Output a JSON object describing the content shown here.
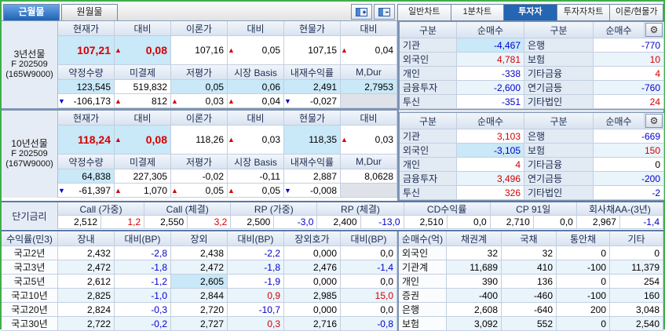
{
  "colors": {
    "accent_blue": "#2465b4",
    "up_red": "#d40000",
    "down_blue": "#0000cc",
    "highlight": "#c9e8f8",
    "frame_green": "#3fae49"
  },
  "top_tabs": {
    "left": [
      {
        "label": "근월물",
        "active": true
      },
      {
        "label": "원월물",
        "active": false
      }
    ],
    "icon_buttons": [
      {
        "name": "grid-plus-icon"
      },
      {
        "name": "grid-minus-icon"
      }
    ],
    "right": [
      {
        "label": "일반차트",
        "active": false
      },
      {
        "label": "1분차트",
        "active": false
      },
      {
        "label": "투자자",
        "active": true
      },
      {
        "label": "투자자차트",
        "active": false
      },
      {
        "label": "이론/현물가",
        "active": false
      }
    ]
  },
  "futures_blocks": [
    {
      "label_lines": [
        "3년선물",
        "F 202509",
        "(165W9000)"
      ],
      "price_headers": [
        "현재가",
        "대비",
        "이론가",
        "대비",
        "현물가",
        "대비"
      ],
      "price_cells": [
        {
          "t": "107,21",
          "c": "red",
          "b": "hl",
          "big": true
        },
        {
          "t": "0,08",
          "c": "red",
          "b": "hl",
          "big": true,
          "a": "up"
        },
        {
          "t": "107,16"
        },
        {
          "t": "0,05",
          "a": "up"
        },
        {
          "t": "107,15"
        },
        {
          "t": "0,04",
          "a": "up"
        }
      ],
      "stat_headers": [
        "약정수량",
        "미결제",
        "저평가",
        "시장 Basis",
        "내재수익률",
        "M,Dur"
      ],
      "stat_cells": [
        {
          "t": "123,545",
          "b": "hl"
        },
        {
          "t": "519,832"
        },
        {
          "t": "0,05",
          "b": "hl"
        },
        {
          "t": "0,06",
          "b": "hl"
        },
        {
          "t": "2,491",
          "b": "hl"
        },
        {
          "t": "2,7953",
          "b": "hl"
        }
      ],
      "chg_cells": [
        {
          "t": "-106,173",
          "a": "down"
        },
        {
          "t": "812",
          "a": "up"
        },
        {
          "t": "0,03",
          "a": "up"
        },
        {
          "t": "0,04",
          "a": "up"
        },
        {
          "t": "-0,027",
          "a": "down"
        },
        {
          "t": "",
          "b": "gray"
        }
      ]
    },
    {
      "label_lines": [
        "10년선물",
        "F 202509",
        "(167W9000)"
      ],
      "price_headers": [
        "현재가",
        "대비",
        "이론가",
        "대비",
        "현물가",
        "대비"
      ],
      "price_cells": [
        {
          "t": "118,24",
          "c": "red",
          "b": "hl",
          "big": true
        },
        {
          "t": "0,08",
          "c": "red",
          "b": "hl",
          "big": true,
          "a": "up"
        },
        {
          "t": "118,26"
        },
        {
          "t": "0,03",
          "a": "up"
        },
        {
          "t": "118,35",
          "b": "hl"
        },
        {
          "t": "0,03",
          "a": "up"
        }
      ],
      "stat_headers": [
        "약정수량",
        "미결제",
        "저평가",
        "시장 Basis",
        "내재수익률",
        "M,Dur"
      ],
      "stat_cells": [
        {
          "t": "64,838",
          "b": "hl"
        },
        {
          "t": "227,305"
        },
        {
          "t": "-0,02"
        },
        {
          "t": "-0,11"
        },
        {
          "t": "2,887"
        },
        {
          "t": "8,0628"
        }
      ],
      "chg_cells": [
        {
          "t": "-61,397",
          "a": "down"
        },
        {
          "t": "1,070",
          "a": "up"
        },
        {
          "t": "0,05",
          "a": "up"
        },
        {
          "t": "0,05",
          "a": "up"
        },
        {
          "t": "-0,008",
          "a": "down"
        },
        {
          "t": "",
          "b": "gray"
        }
      ]
    }
  ],
  "investor_tables": [
    {
      "headers": [
        "구분",
        "순매수",
        "구분",
        "순매수"
      ],
      "gear_icon": "⚙",
      "rows": [
        {
          "g1": "기관",
          "v1": "-4,467",
          "c1": "blue",
          "hl1": true,
          "g2": "은행",
          "v2": "-770",
          "c2": "blue"
        },
        {
          "g1": "외국인",
          "v1": "4,781",
          "c1": "red",
          "g2": "보험",
          "v2": "10",
          "c2": "red"
        },
        {
          "g1": "개인",
          "v1": "-338",
          "c1": "blue",
          "g2": "기타금융",
          "v2": "4",
          "c2": "red"
        },
        {
          "g1": "금융투자",
          "v1": "-2,600",
          "c1": "blue",
          "g2": "연기금등",
          "v2": "-760",
          "c2": "blue"
        },
        {
          "g1": "투신",
          "v1": "-351",
          "c1": "blue",
          "g2": "기타법인",
          "v2": "24",
          "c2": "red"
        }
      ]
    },
    {
      "headers": [
        "구분",
        "순매수",
        "구분",
        "순매수"
      ],
      "gear_icon": "⚙",
      "rows": [
        {
          "g1": "기관",
          "v1": "3,103",
          "c1": "red",
          "g2": "은행",
          "v2": "-669",
          "c2": "blue"
        },
        {
          "g1": "외국인",
          "v1": "-3,105",
          "c1": "blue",
          "hl1": true,
          "g2": "보험",
          "v2": "150",
          "c2": "red"
        },
        {
          "g1": "개인",
          "v1": "4",
          "c1": "red",
          "g2": "기타금융",
          "v2": "0",
          "c2": "black"
        },
        {
          "g1": "금융투자",
          "v1": "3,496",
          "c1": "red",
          "g2": "연기금등",
          "v2": "-200",
          "c2": "blue"
        },
        {
          "g1": "투신",
          "v1": "326",
          "c1": "red",
          "g2": "기타법인",
          "v2": "-2",
          "c2": "blue"
        }
      ]
    }
  ],
  "short_rates": {
    "label": "단기금리",
    "groups": [
      {
        "h": "Call (가중)",
        "v": "2,512",
        "d": "1,2",
        "dc": "red"
      },
      {
        "h": "Call (체결)",
        "v": "2,550",
        "d": "3,2",
        "dc": "red"
      },
      {
        "h": "RP (가중)",
        "v": "2,500",
        "d": "-3,0",
        "dc": "blue"
      },
      {
        "h": "RP (체결)",
        "v": "2,400",
        "d": "-13,0",
        "dc": "blue"
      },
      {
        "h": "CD수익률",
        "v": "2,510",
        "d": "0,0",
        "dc": "black"
      },
      {
        "h": "CP 91일",
        "v": "2,710",
        "d": "0,0",
        "dc": "black"
      },
      {
        "h": "회사채AA-(3년)",
        "v": "2,967",
        "d": "-1,4",
        "dc": "blue"
      }
    ]
  },
  "yield_table": {
    "headers": [
      "수익률(민3)",
      "장내",
      "대비(BP)",
      "장외",
      "대비(BP)",
      "장외호가",
      "대비(BP)"
    ],
    "rows": [
      {
        "label": "국고2년",
        "cells": [
          {
            "t": "2,432"
          },
          {
            "t": "-2,8",
            "c": "blue"
          },
          {
            "t": "2,438"
          },
          {
            "t": "-2,2",
            "c": "blue"
          },
          {
            "t": "0,000"
          },
          {
            "t": "0,0"
          }
        ]
      },
      {
        "label": "국고3년",
        "cells": [
          {
            "t": "2,472"
          },
          {
            "t": "-1,8",
            "c": "blue"
          },
          {
            "t": "2,472"
          },
          {
            "t": "-1,8",
            "c": "blue"
          },
          {
            "t": "2,476"
          },
          {
            "t": "-1,4",
            "c": "blue"
          }
        ]
      },
      {
        "label": "국고5년",
        "cells": [
          {
            "t": "2,612"
          },
          {
            "t": "-1,2",
            "c": "blue"
          },
          {
            "t": "2,605",
            "b": "hl"
          },
          {
            "t": "-1,9",
            "c": "blue"
          },
          {
            "t": "0,000"
          },
          {
            "t": "0,0"
          }
        ]
      },
      {
        "label": "국고10년",
        "cells": [
          {
            "t": "2,825"
          },
          {
            "t": "-1,0",
            "c": "blue"
          },
          {
            "t": "2,844"
          },
          {
            "t": "0,9",
            "c": "red"
          },
          {
            "t": "2,985"
          },
          {
            "t": "15,0",
            "c": "red"
          }
        ]
      },
      {
        "label": "국고20년",
        "cells": [
          {
            "t": "2,824"
          },
          {
            "t": "-0,3",
            "c": "blue"
          },
          {
            "t": "2,720"
          },
          {
            "t": "-10,7",
            "c": "blue"
          },
          {
            "t": "0,000"
          },
          {
            "t": "0,0"
          }
        ]
      },
      {
        "label": "국고30년",
        "cells": [
          {
            "t": "2,722"
          },
          {
            "t": "-0,2",
            "c": "blue"
          },
          {
            "t": "2,727"
          },
          {
            "t": "0,3",
            "c": "red"
          },
          {
            "t": "2,716"
          },
          {
            "t": "-0,8",
            "c": "blue"
          }
        ]
      }
    ]
  },
  "netbuy_table": {
    "headers": [
      "순매수(억)",
      "채권계",
      "국채",
      "통안채",
      "기타"
    ],
    "rows": [
      {
        "label": "외국인",
        "cells": [
          "32",
          "32",
          "0",
          "0"
        ]
      },
      {
        "label": "기관계",
        "cells": [
          "11,689",
          "410",
          "-100",
          "11,379"
        ]
      },
      {
        "label": "개인",
        "cells": [
          "390",
          "136",
          "0",
          "254"
        ]
      },
      {
        "label": "증권",
        "cells": [
          "-400",
          "-460",
          "-100",
          "160"
        ]
      },
      {
        "label": "은행",
        "cells": [
          "2,608",
          "-640",
          "200",
          "3,048"
        ]
      },
      {
        "label": "보험",
        "cells": [
          "3,092",
          "552",
          "0",
          "2,540"
        ]
      }
    ]
  }
}
